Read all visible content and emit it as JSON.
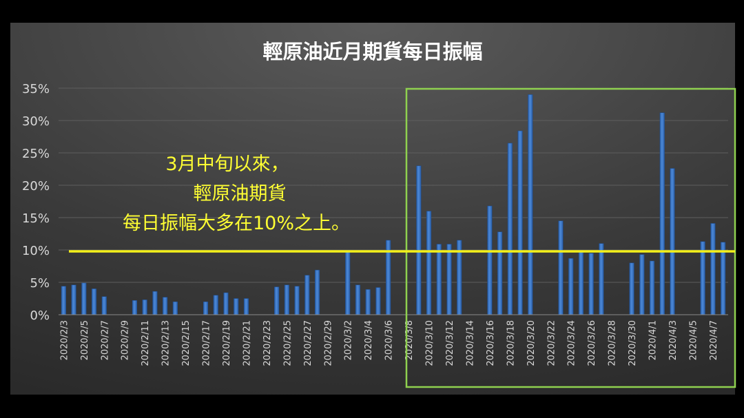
{
  "chart_data": {
    "type": "bar",
    "title": "輕原油近月期貨每日振幅",
    "xlabel": "",
    "ylabel": "",
    "ylim": [
      0,
      35
    ],
    "y_ticks": [
      "0%",
      "5%",
      "10%",
      "15%",
      "20%",
      "25%",
      "30%",
      "35%"
    ],
    "x_tick_labels": [
      "2020/2/3",
      "2020/2/5",
      "2020/2/7",
      "2020/2/9",
      "2020/2/11",
      "2020/2/13",
      "2020/2/15",
      "2020/2/17",
      "2020/2/19",
      "2020/2/21",
      "2020/2/23",
      "2020/2/25",
      "2020/2/27",
      "2020/2/29",
      "2020/3/2",
      "2020/3/4",
      "2020/3/6",
      "2020/3/8",
      "2020/3/10",
      "2020/3/12",
      "2020/3/14",
      "2020/3/16",
      "2020/3/18",
      "2020/3/20",
      "2020/3/22",
      "2020/3/24",
      "2020/3/26",
      "2020/3/28",
      "2020/3/30",
      "2020/4/1",
      "2020/4/3",
      "2020/4/5",
      "2020/4/7"
    ],
    "categories": [
      "2020/2/3",
      "2020/2/4",
      "2020/2/5",
      "2020/2/6",
      "2020/2/7",
      "2020/2/8",
      "2020/2/9",
      "2020/2/10",
      "2020/2/11",
      "2020/2/12",
      "2020/2/13",
      "2020/2/14",
      "2020/2/15",
      "2020/2/16",
      "2020/2/17",
      "2020/2/18",
      "2020/2/19",
      "2020/2/20",
      "2020/2/21",
      "2020/2/22",
      "2020/2/23",
      "2020/2/24",
      "2020/2/25",
      "2020/2/26",
      "2020/2/27",
      "2020/2/28",
      "2020/2/29",
      "2020/3/1",
      "2020/3/2",
      "2020/3/3",
      "2020/3/4",
      "2020/3/5",
      "2020/3/6",
      "2020/3/7",
      "2020/3/8",
      "2020/3/9",
      "2020/3/10",
      "2020/3/11",
      "2020/3/12",
      "2020/3/13",
      "2020/3/14",
      "2020/3/15",
      "2020/3/16",
      "2020/3/17",
      "2020/3/18",
      "2020/3/19",
      "2020/3/20",
      "2020/3/21",
      "2020/3/22",
      "2020/3/23",
      "2020/3/24",
      "2020/3/25",
      "2020/3/26",
      "2020/3/27",
      "2020/3/28",
      "2020/3/29",
      "2020/3/30",
      "2020/3/31",
      "2020/4/1",
      "2020/4/2",
      "2020/4/3",
      "2020/4/4",
      "2020/4/5",
      "2020/4/6",
      "2020/4/7",
      "2020/4/8"
    ],
    "values": [
      4.4,
      4.6,
      4.9,
      4.0,
      2.8,
      null,
      null,
      2.2,
      2.3,
      3.6,
      2.7,
      2.0,
      null,
      null,
      2.0,
      3.0,
      3.4,
      2.5,
      2.5,
      null,
      null,
      4.3,
      4.6,
      4.4,
      6.1,
      6.9,
      null,
      null,
      9.9,
      4.6,
      3.9,
      4.2,
      11.5,
      null,
      null,
      23.0,
      16.0,
      10.9,
      10.9,
      11.5,
      null,
      null,
      16.8,
      12.8,
      26.5,
      28.4,
      34.0,
      null,
      null,
      14.5,
      8.7,
      9.7,
      9.5,
      11.0,
      null,
      null,
      8.0,
      9.3,
      8.3,
      31.2,
      22.6,
      null,
      null,
      11.3,
      14.1,
      11.2
    ],
    "reference_line": 10,
    "highlight_range": [
      "2020/3/8",
      "2020/4/8"
    ],
    "grid": true,
    "legend": "none"
  },
  "annotation": {
    "lines": [
      "3月中旬以來，",
      "輕原油期貨",
      "每日振幅大多在10%之上。"
    ]
  },
  "colors": {
    "bar": "#3a78c9",
    "annotation_text": "#ffff33",
    "reference_line": "#f3f01a",
    "highlight_box": "#8fd14f",
    "axis_text": "#d9d9d9",
    "title_text": "#ffffff"
  }
}
